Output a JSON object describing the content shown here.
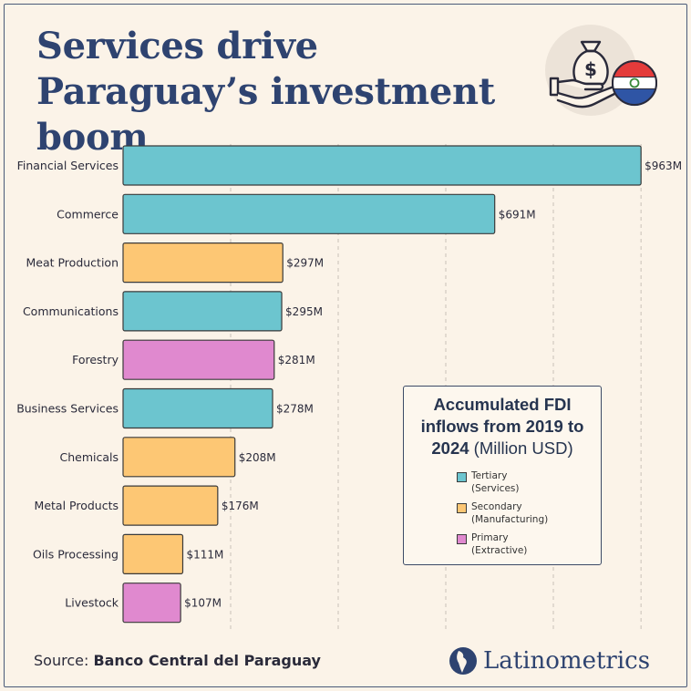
{
  "title": "Services drive Paraguay’s investment boom",
  "legend": {
    "title_bold": "Accumulated FDI inflows from 2019 to 2024",
    "title_unit": "(Million USD)",
    "items": [
      {
        "line1": "Tertiary",
        "line2": "(Services)",
        "color": "#6cc5cf"
      },
      {
        "line1": "Secondary",
        "line2": "(Manufacturing)",
        "color": "#fdc774"
      },
      {
        "line1": "Primary",
        "line2": "(Extractive)",
        "color": "#e089cf"
      }
    ]
  },
  "source": {
    "label": "Source:",
    "value": "Banco Central del Paraguay"
  },
  "brand": "Latinometrics",
  "chart_data": {
    "type": "bar",
    "orientation": "horizontal",
    "categories": [
      "Financial Services",
      "Commerce",
      "Meat Production",
      "Communications",
      "Forestry",
      "Business Services",
      "Chemicals",
      "Metal Products",
      "Oils Processing",
      "Livestock"
    ],
    "values": [
      963,
      691,
      297,
      295,
      281,
      278,
      208,
      176,
      111,
      107
    ],
    "labels": [
      "$963M",
      "$691M",
      "$297M",
      "$295M",
      "$281M",
      "$278M",
      "$208M",
      "$176M",
      "$111M",
      "$107M"
    ],
    "sector": [
      "Tertiary",
      "Tertiary",
      "Secondary",
      "Tertiary",
      "Primary",
      "Tertiary",
      "Secondary",
      "Secondary",
      "Secondary",
      "Primary"
    ],
    "colors": {
      "Tertiary": "#6cc5cf",
      "Secondary": "#fdc774",
      "Primary": "#e089cf"
    },
    "xlim": [
      0,
      1000
    ],
    "grid": true,
    "gridlines_at": [
      200,
      400,
      600,
      800,
      963
    ]
  }
}
